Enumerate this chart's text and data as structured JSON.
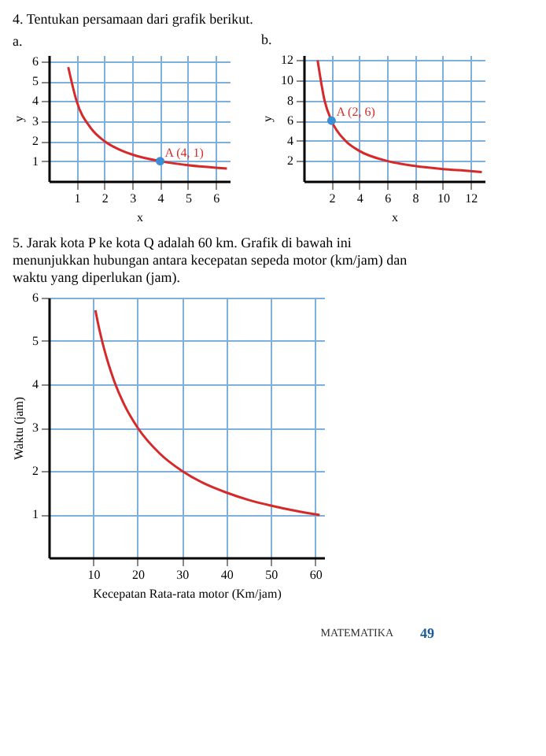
{
  "chart_data": [
    {
      "type": "line",
      "title": "4. Tentukan persamaan dari grafik berikut.",
      "subtitle": "a.",
      "xlabel": "x",
      "ylabel": "y",
      "xlim": [
        0,
        6.5
      ],
      "ylim": [
        0,
        6.3
      ],
      "xticks": [
        1,
        2,
        3,
        4,
        5,
        6
      ],
      "yticks": [
        1,
        2,
        3,
        4,
        5,
        6
      ],
      "grid": true,
      "series": [
        {
          "color": "#d62a2a",
          "x": [
            0.7,
            1,
            1.5,
            2,
            2.5,
            3,
            4,
            5,
            6,
            6.4
          ],
          "values": [
            5.7,
            4,
            2.67,
            2,
            1.6,
            1.33,
            1,
            0.8,
            0.67,
            0.63
          ]
        },
        {
          "type": "scatter",
          "color": "#3a8fd6",
          "x": [
            4
          ],
          "values": [
            1
          ]
        }
      ],
      "annotations": [
        {
          "text": "A (4, 1)",
          "x": 4,
          "y": 1
        }
      ]
    },
    {
      "type": "line",
      "subtitle": "b.",
      "xlabel": "x",
      "ylabel": "y",
      "xlim": [
        0,
        13
      ],
      "ylim": [
        0,
        12.5
      ],
      "xticks": [
        2,
        4,
        6,
        8,
        10,
        12
      ],
      "yticks": [
        2,
        4,
        6,
        8,
        10,
        12
      ],
      "grid": true,
      "series": [
        {
          "color": "#d62a2a",
          "x": [
            1.0,
            1.5,
            2,
            3,
            4,
            6,
            8,
            10,
            12,
            12.8
          ],
          "values": [
            12,
            8,
            6,
            4,
            3,
            2,
            1.5,
            1.2,
            1,
            0.9
          ]
        },
        {
          "type": "scatter",
          "color": "#3a8fd6",
          "x": [
            2
          ],
          "values": [
            6
          ]
        }
      ],
      "annotations": [
        {
          "text": "A (2, 6)",
          "x": 2,
          "y": 6
        }
      ]
    },
    {
      "type": "line",
      "title": "5. Jarak kota P ke kota Q adalah 60 km. Grafik di bawah ini menunjukkan hubungan antara kecepatan sepeda motor (km/jam) dan waktu yang diperlukan (jam).",
      "xlabel": "Kecepatan Rata-rata motor (Km/jam)",
      "ylabel": "Waktu (jam)",
      "xlim": [
        0,
        62
      ],
      "ylim": [
        0,
        6
      ],
      "xticks": [
        10,
        20,
        30,
        40,
        50,
        60
      ],
      "yticks": [
        1,
        2,
        3,
        4,
        5,
        6
      ],
      "grid": true,
      "series": [
        {
          "color": "#d62a2a",
          "x": [
            10.5,
            11,
            12,
            13,
            14,
            15,
            17,
            20,
            25,
            30,
            35,
            40,
            45,
            50,
            55,
            61
          ],
          "values": [
            5.71,
            5.45,
            5,
            4.62,
            4.29,
            4,
            3.53,
            3,
            2.4,
            2,
            1.71,
            1.5,
            1.33,
            1.2,
            1.09,
            0.98
          ]
        }
      ],
      "annotations": [
        "MATEMATIKA",
        "49"
      ]
    }
  ]
}
